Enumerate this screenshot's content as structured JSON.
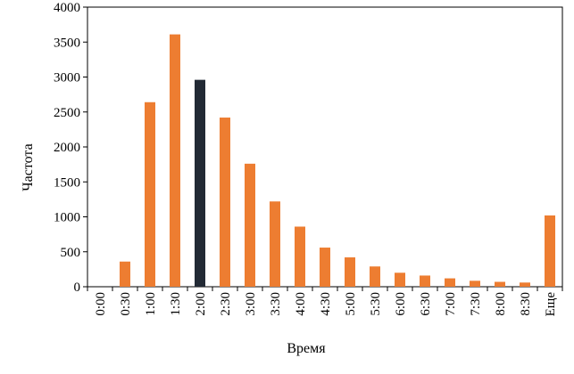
{
  "chart_data": {
    "type": "bar",
    "title": "",
    "xlabel": "Время",
    "ylabel": "Частота",
    "ylim": [
      0,
      4000
    ],
    "yticks": [
      0,
      500,
      1000,
      1500,
      2000,
      2500,
      3000,
      3500,
      4000
    ],
    "grid": false,
    "legend": "none",
    "categories": [
      "0:00",
      "0:30",
      "1:00",
      "1:30",
      "2:00",
      "2:30",
      "3:00",
      "3:30",
      "4:00",
      "4:30",
      "5:00",
      "5:30",
      "6:00",
      "6:30",
      "7:00",
      "7:30",
      "8:00",
      "8:30",
      "Еще"
    ],
    "values": [
      0,
      360,
      2640,
      3610,
      2960,
      2420,
      1760,
      1220,
      860,
      560,
      420,
      290,
      200,
      160,
      120,
      85,
      70,
      60,
      1020
    ],
    "highlight_index": 4,
    "colors": {
      "bar": "#ED7D31",
      "highlight": "#222A35",
      "axis": "#000000"
    }
  }
}
